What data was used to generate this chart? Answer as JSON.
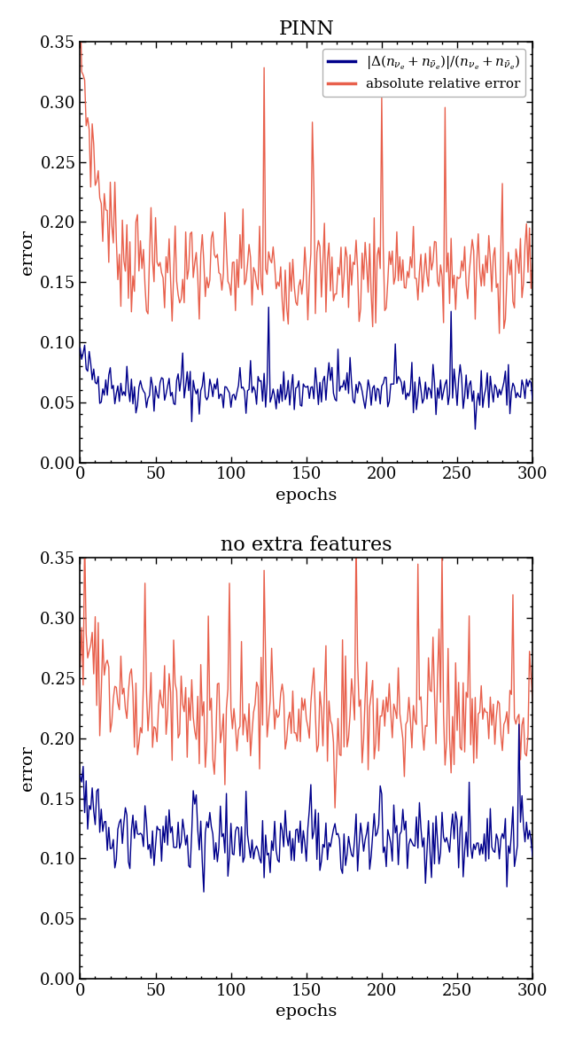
{
  "title1": "PINN",
  "title2": "no extra features",
  "xlabel": "epochs",
  "ylabel": "error",
  "xlim": [
    0,
    300
  ],
  "ylim": [
    0.0,
    0.35
  ],
  "yticks": [
    0.0,
    0.05,
    0.1,
    0.15,
    0.2,
    0.25,
    0.3,
    0.35
  ],
  "xticks": [
    0,
    50,
    100,
    150,
    200,
    250,
    300
  ],
  "color_blue": "#00008B",
  "color_orange": "#E8604C",
  "legend_label_blue": "$|\\Delta(n_{\\nu_e} + n_{\\bar{\\nu}_e})|/(n_{\\nu_e} + n_{\\bar{\\nu}_e})$",
  "legend_label_orange": "absolute relative error",
  "n_epochs": 301,
  "figsize": [
    6.4,
    11.72
  ],
  "dpi": 100
}
